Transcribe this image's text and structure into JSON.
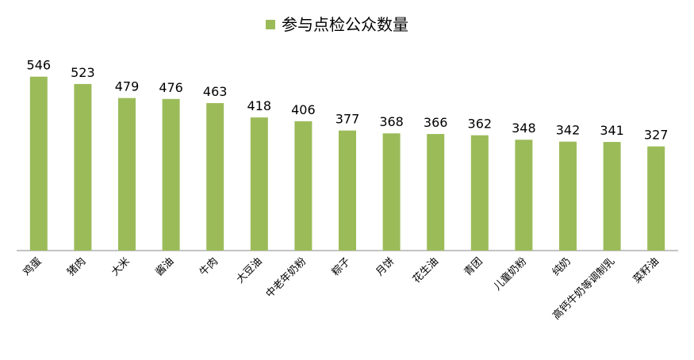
{
  "chart_data": {
    "type": "bar",
    "categories": [
      "鸡蛋",
      "猪肉",
      "大米",
      "酱油",
      "牛肉",
      "大豆油",
      "中老年奶粉",
      "粽子",
      "月饼",
      "花生油",
      "青团",
      "儿童奶粉",
      "纯奶",
      "高钙牛奶等调制乳",
      "菜籽油"
    ],
    "series": [
      {
        "name": "参与点检公众数量",
        "color": "#9bbb59",
        "values": [
          546,
          523,
          479,
          476,
          463,
          418,
          406,
          377,
          368,
          366,
          362,
          348,
          342,
          341,
          327
        ]
      }
    ],
    "ylim": [
      0,
      600
    ],
    "legend": "top"
  }
}
